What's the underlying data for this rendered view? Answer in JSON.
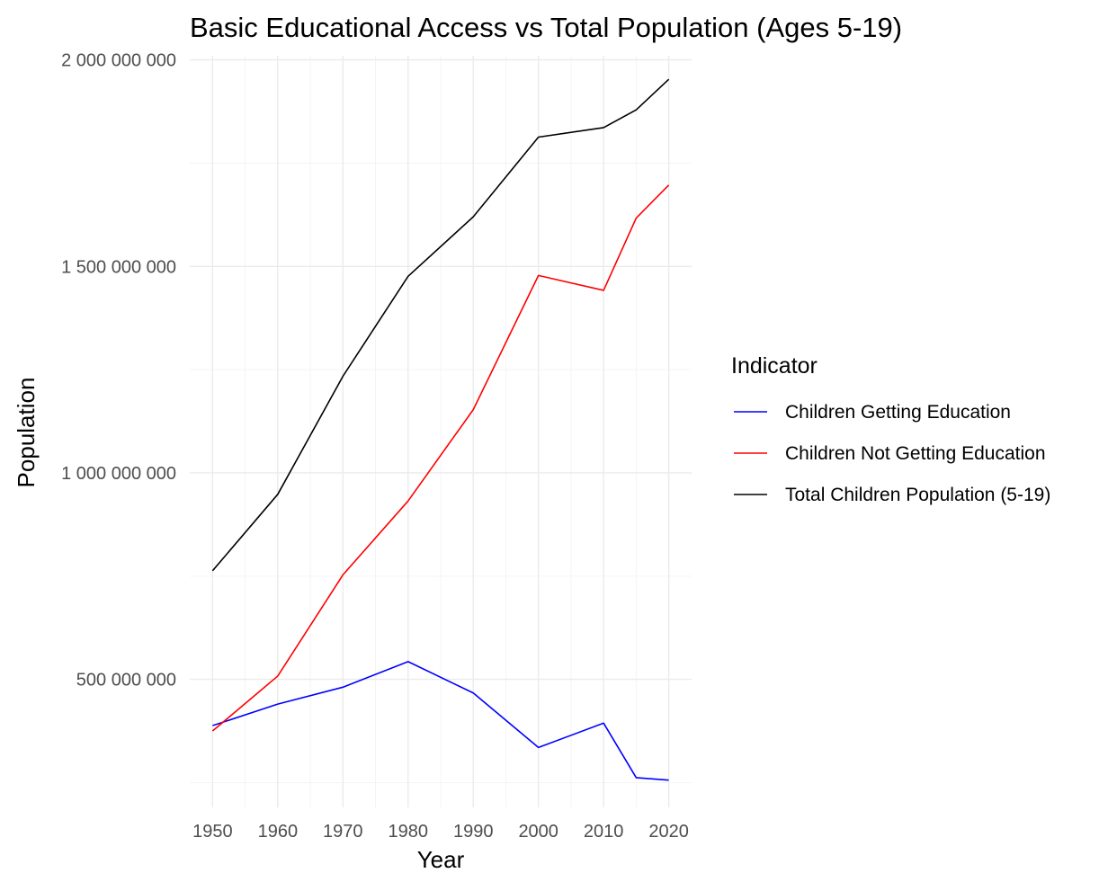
{
  "chart_data": {
    "type": "line",
    "title": "Basic Educational Access vs Total Population (Ages 5-19)",
    "xlabel": "Year",
    "ylabel": "Population",
    "x": [
      1950,
      1960,
      1970,
      1980,
      1990,
      2000,
      2010,
      2015,
      2020
    ],
    "xticks": [
      1950,
      1960,
      1970,
      1980,
      1990,
      2000,
      2010,
      2020
    ],
    "xtick_labels": [
      "1950",
      "1960",
      "1970",
      "1980",
      "1990",
      "2000",
      "2010",
      "2020"
    ],
    "yticks": [
      500000000,
      1000000000,
      1500000000,
      2000000000
    ],
    "ytick_labels": [
      "500 000 000",
      "1 000 000 000",
      "1 500 000 000",
      "2 000 000 000"
    ],
    "xlim": [
      1946.5,
      2023.5
    ],
    "ylim": [
      190000000,
      2010000000
    ],
    "grid": true,
    "legend": {
      "title": "Indicator",
      "position": "right"
    },
    "series": [
      {
        "name": "Children Getting Education",
        "color": "#0000ff",
        "values": [
          388000000,
          440000000,
          481000000,
          543000000,
          467000000,
          335000000,
          394000000,
          262000000,
          256000000
        ]
      },
      {
        "name": "Children Not Getting Education",
        "color": "#ff0000",
        "values": [
          375000000,
          508000000,
          753000000,
          932000000,
          1153000000,
          1478000000,
          1442000000,
          1617000000,
          1697000000
        ]
      },
      {
        "name": "Total Children Population (5-19)",
        "color": "#000000",
        "values": [
          763000000,
          948000000,
          1234000000,
          1476000000,
          1620000000,
          1813000000,
          1836000000,
          1879000000,
          1953000000
        ]
      }
    ]
  }
}
